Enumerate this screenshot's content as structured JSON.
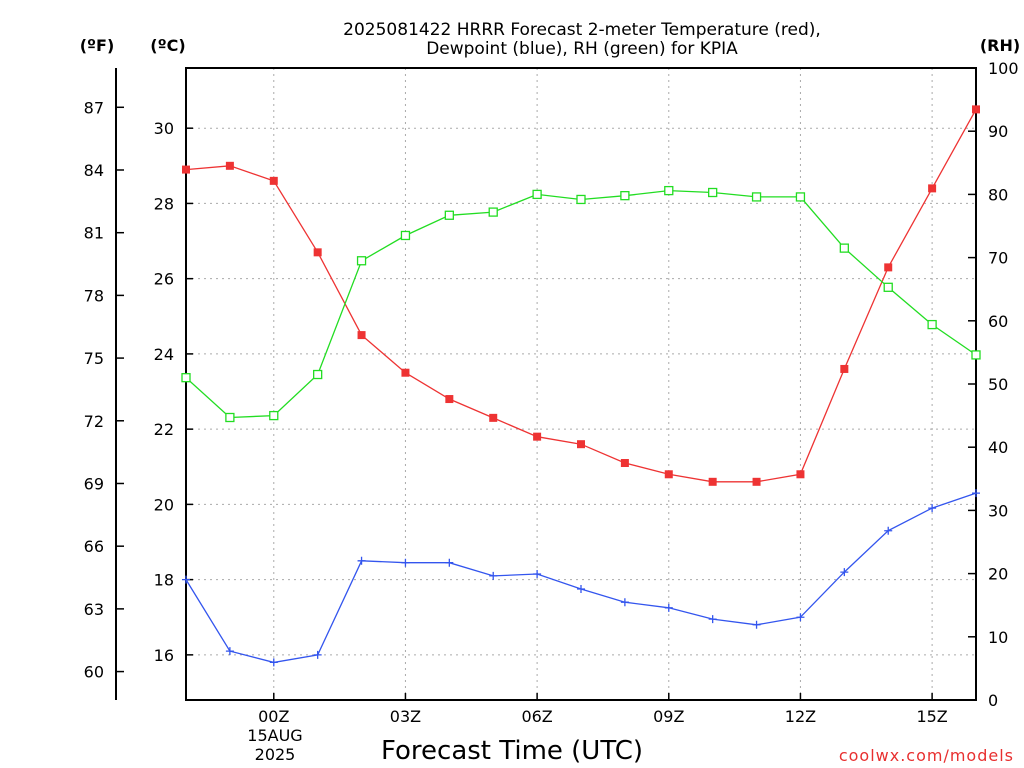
{
  "chart_data": {
    "type": "line",
    "title_line1": "2025081422 HRRR Forecast 2-meter Temperature (red),",
    "title_line2": "Dewpoint (blue), RH (green) for KPIA",
    "xlabel": "Forecast Time (UTC)",
    "credit": "coolwx.com/models",
    "units": {
      "fahrenheit": "(ºF)",
      "celsius": "(ºC)",
      "rh": "(RH)"
    },
    "x_ticks": [
      "00Z",
      "03Z",
      "06Z",
      "09Z",
      "12Z",
      "15Z"
    ],
    "x_tick_hours": [
      2,
      5,
      8,
      11,
      14,
      17
    ],
    "date_label": [
      "15AUG",
      "2025"
    ],
    "x_hours": [
      0,
      1,
      2,
      3,
      4,
      5,
      6,
      7,
      8,
      9,
      10,
      11,
      12,
      13,
      14,
      15,
      16,
      17,
      18
    ],
    "xlim": [
      0,
      18
    ],
    "celsius_ticks": [
      "16",
      "18",
      "20",
      "22",
      "24",
      "26",
      "28",
      "30"
    ],
    "fahrenheit_ticks": [
      "60",
      "63",
      "66",
      "69",
      "72",
      "75",
      "78",
      "81",
      "84",
      "87"
    ],
    "rh_ticks": [
      "0",
      "10",
      "20",
      "30",
      "40",
      "50",
      "60",
      "70",
      "80",
      "90",
      "100"
    ],
    "ylim_celsius": [
      14.8,
      31.6
    ],
    "ylim_rh": [
      0,
      100
    ],
    "series": [
      {
        "key": "temperature",
        "axis": "celsius",
        "color": "#ee3333",
        "marker": "filled-square",
        "values": [
          28.9,
          29.0,
          28.6,
          26.7,
          24.5,
          23.5,
          22.8,
          22.3,
          21.8,
          21.6,
          21.1,
          20.8,
          20.6,
          20.6,
          20.8,
          23.6,
          26.3,
          28.4,
          30.5
        ]
      },
      {
        "key": "dewpoint",
        "axis": "celsius",
        "color": "#3355ee",
        "marker": "plus",
        "values": [
          18.0,
          16.1,
          15.8,
          16.0,
          18.5,
          18.45,
          18.45,
          18.1,
          18.15,
          17.75,
          17.4,
          17.25,
          16.95,
          16.8,
          17.0,
          18.2,
          19.3,
          19.9,
          20.3
        ]
      },
      {
        "key": "relative_humidity",
        "axis": "rh",
        "color": "#22dd22",
        "marker": "open-square",
        "values": [
          51,
          44.7,
          45,
          51.5,
          69.5,
          73.5,
          76.7,
          77.2,
          80,
          79.2,
          79.8,
          80.6,
          80.3,
          79.6,
          79.6,
          71.5,
          65.3,
          59.4,
          54.6
        ]
      }
    ]
  }
}
